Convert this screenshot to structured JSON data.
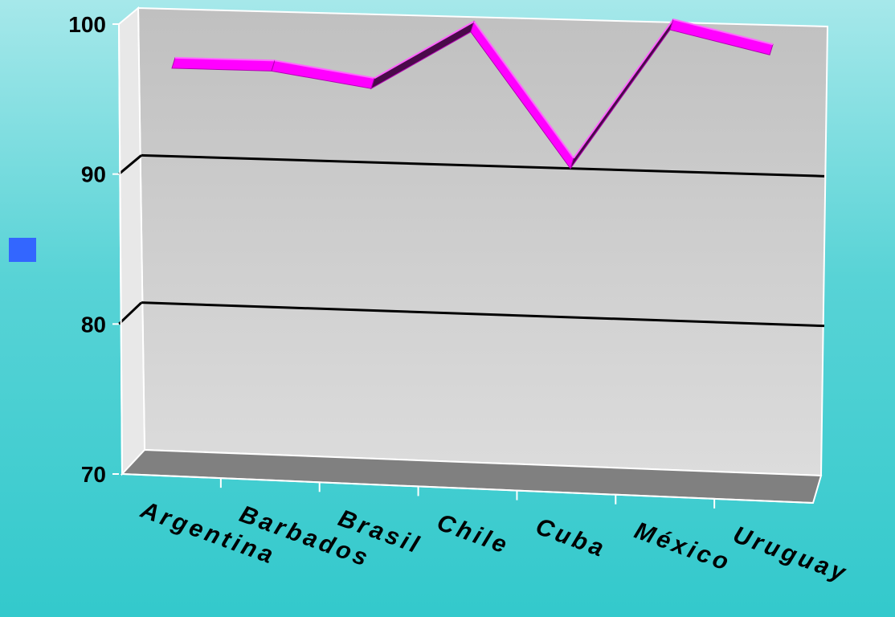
{
  "chart_data": {
    "type": "line",
    "style": "3d",
    "categories": [
      "Argentina",
      "Barbados",
      "Brasil",
      "Chile",
      "Cuba",
      "México",
      "Uruguay"
    ],
    "series": [
      {
        "values": [
          96.5,
          96.5,
          95.5,
          99.5,
          90.5,
          100,
          98.5
        ],
        "color": "#ff00ff"
      }
    ],
    "y_ticks": [
      "70",
      "80",
      "90",
      "100"
    ],
    "ylim": [
      70,
      100
    ],
    "grid": true,
    "legend": {
      "swatch_color": "#3366ff",
      "position": "left"
    },
    "colors": {
      "back_wall": "#c2c2c2",
      "floor": "#808080",
      "gridline": "#000000",
      "axis": "#ffffff"
    }
  }
}
